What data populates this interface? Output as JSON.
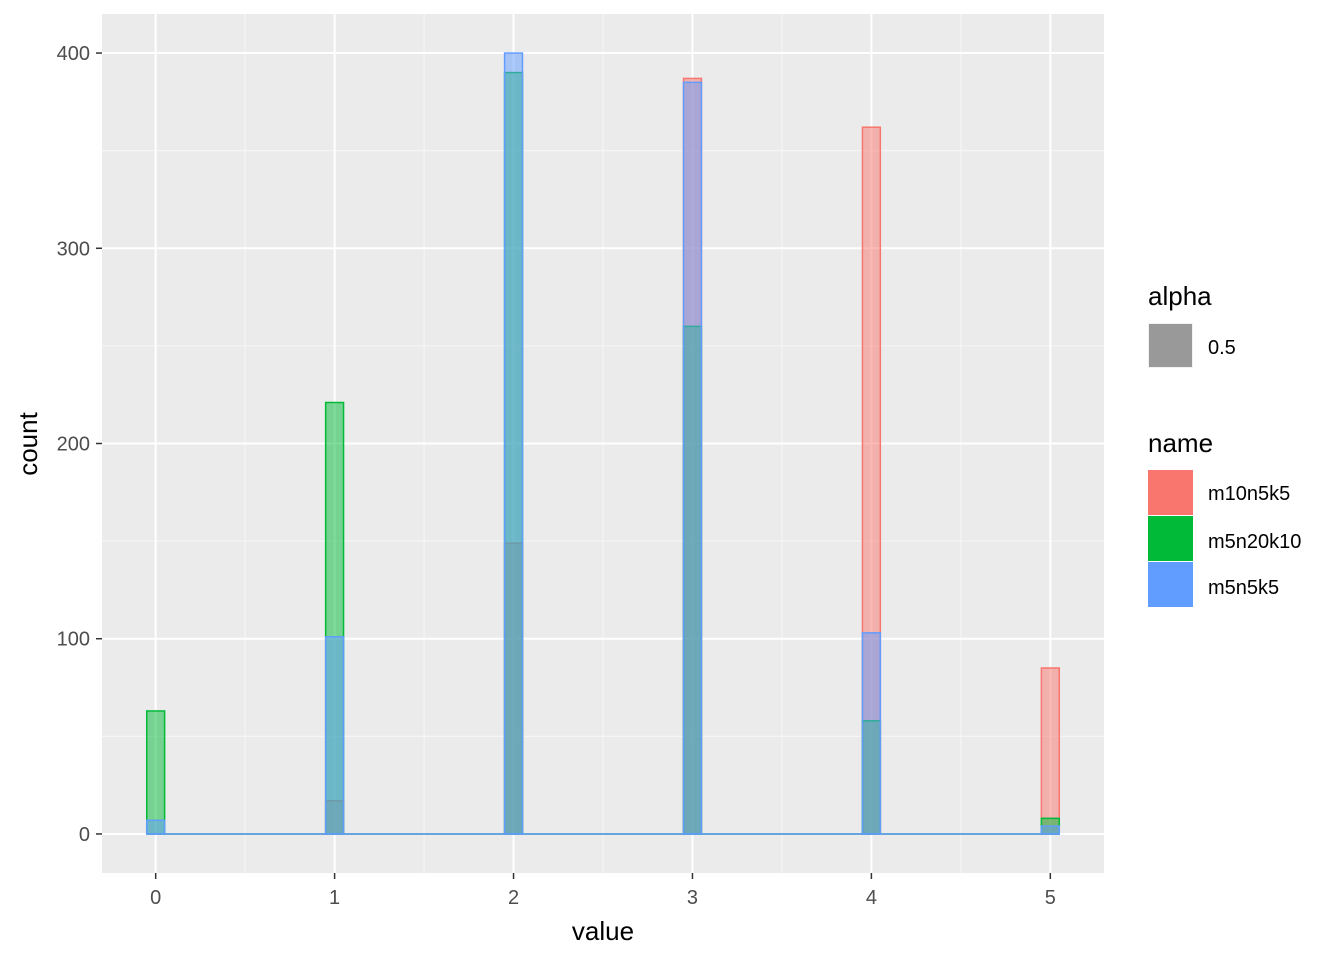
{
  "chart_data": {
    "type": "bar",
    "xlabel": "value",
    "ylabel": "count",
    "xlim": [
      -0.3,
      5.3
    ],
    "ylim": [
      -20,
      420
    ],
    "x_ticks": [
      0,
      1,
      2,
      3,
      4,
      5
    ],
    "y_ticks": [
      0,
      100,
      200,
      300,
      400
    ],
    "x_tick_labels": [
      "0",
      "1",
      "2",
      "3",
      "4",
      "5"
    ],
    "y_tick_labels": [
      "0",
      "100",
      "200",
      "300",
      "400"
    ],
    "grid": true,
    "overlay": "identity",
    "x": [
      0,
      1,
      2,
      3,
      4,
      5
    ],
    "series": [
      {
        "name": "m10n5k5",
        "color": "#F8766D",
        "values": [
          0,
          17,
          149,
          387,
          362,
          85
        ]
      },
      {
        "name": "m5n20k10",
        "color": "#00BA38",
        "values": [
          63,
          221,
          390,
          260,
          58,
          8
        ]
      },
      {
        "name": "m5n5k5",
        "color": "#619CFF",
        "values": [
          7,
          101,
          400,
          385,
          103,
          4
        ]
      }
    ],
    "legend_placement": "right",
    "legends": [
      {
        "title": "alpha",
        "entries": [
          {
            "label": "0.5",
            "color": "#999999"
          }
        ]
      },
      {
        "title": "name",
        "entries": [
          {
            "label": "m10n5k5",
            "color": "#F8766D"
          },
          {
            "label": "m5n20k10",
            "color": "#00BA38"
          },
          {
            "label": "m5n5k5",
            "color": "#619CFF"
          }
        ]
      }
    ],
    "colors": {
      "panel_background": "#EBEBEB",
      "grid_major": "#FFFFFF",
      "grid_minor": "#F5F5F5",
      "tick_text": "#4D4D4D",
      "tick_mark": "#333333"
    }
  }
}
